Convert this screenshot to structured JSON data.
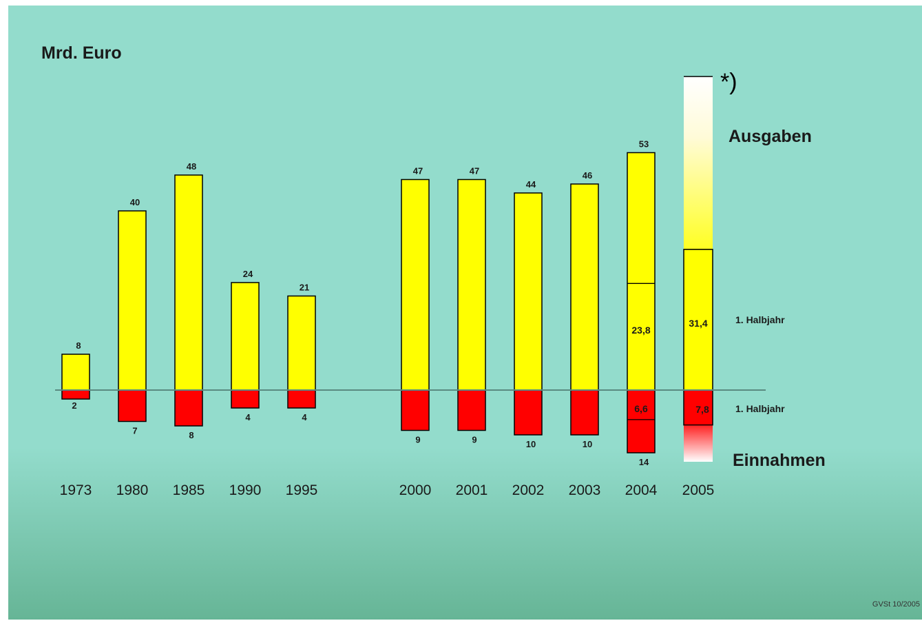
{
  "colors": {
    "background_top": "#93dccc",
    "background_bottom": "#66b596",
    "ausgaben": "#ffff00",
    "einnahmen": "#ff0000",
    "outline": "#000000",
    "baseline": "#5a8a80"
  },
  "chart_data": {
    "type": "bar",
    "unit_label": "Mrd. Euro",
    "categories": [
      "1973",
      "1980",
      "1985",
      "1990",
      "1995",
      "2000",
      "2001",
      "2002",
      "2003",
      "2004",
      "2005"
    ],
    "series": [
      {
        "name": "Ausgaben",
        "values": [
          8,
          40,
          48,
          24,
          21,
          47,
          47,
          44,
          46,
          53,
          null
        ],
        "value_labels": [
          "8",
          "40",
          "48",
          "24",
          "21",
          "47",
          "47",
          "44",
          "46",
          "53",
          ""
        ]
      },
      {
        "name": "Einnahmen",
        "values": [
          2,
          7,
          8,
          4,
          4,
          9,
          9,
          10,
          10,
          14,
          null
        ],
        "value_labels": [
          "2",
          "7",
          "8",
          "4",
          "4",
          "9",
          "9",
          "10",
          "10",
          "14",
          ""
        ]
      }
    ],
    "first_half_year": {
      "label": "1. Halbjahr",
      "ausgaben": {
        "2004": 23.8,
        "2005": 31.4
      },
      "ausgaben_labels": {
        "2004": "23,8",
        "2005": "31,4"
      },
      "einnahmen": {
        "2004": 6.6,
        "2005": 7.8
      },
      "einnahmen_labels": {
        "2004": "6,6",
        "2005": "7,8"
      }
    },
    "projected_2005": {
      "ausgaben_range_top": 70,
      "einnahmen_range_bottom": 16
    },
    "annotations": {
      "ausgaben_label": "Ausgaben",
      "einnahmen_label": "Einnahmen",
      "footnote_mark": "*)",
      "halbjahr_label_upper": "1. Halbjahr",
      "halbjahr_label_lower": "1. Halbjahr"
    },
    "source": "GVSt 10/2005",
    "grid": false,
    "legend": "none"
  }
}
